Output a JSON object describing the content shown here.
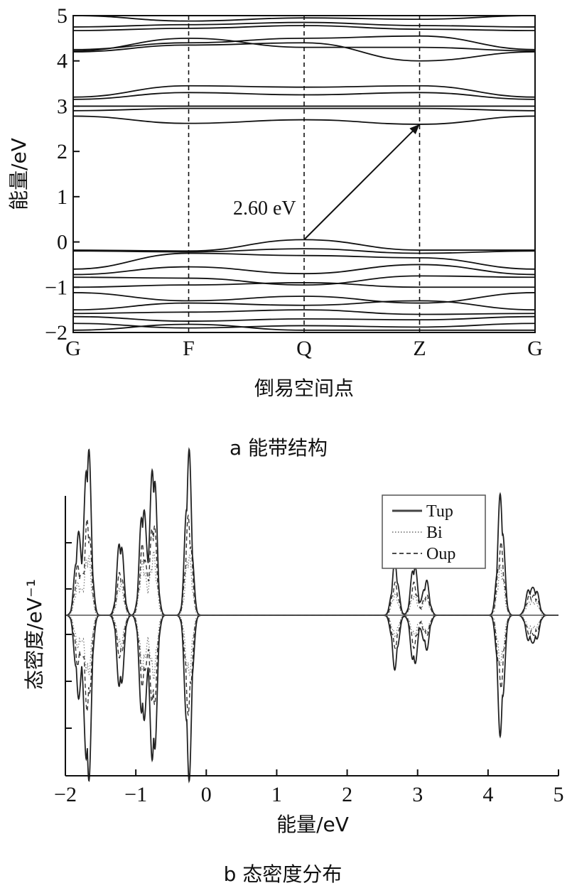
{
  "chart_data": [
    {
      "id": "band",
      "type": "line",
      "caption": "a 能带结构",
      "xlabel": "倒易空间点",
      "ylabel": "能量/eV",
      "ylim": [
        -2,
        5
      ],
      "yticks": [
        "−2",
        "−1",
        "0",
        "1",
        "2",
        "3",
        "4",
        "5"
      ],
      "kpoints": [
        "G",
        "F",
        "Q",
        "Z",
        "G"
      ],
      "annotation": {
        "text": "2.60 eV",
        "from": {
          "k": "Q",
          "energy": 0.05
        },
        "to": {
          "k": "Z",
          "energy": 2.6
        }
      },
      "series": [
        {
          "values": [
            5.0,
            4.88,
            4.95,
            4.92,
            5.05
          ]
        },
        {
          "values": [
            4.75,
            4.8,
            4.85,
            4.78,
            4.75
          ]
        },
        {
          "values": [
            4.67,
            4.72,
            4.78,
            4.7,
            4.67
          ]
        },
        {
          "values": [
            4.25,
            4.4,
            4.5,
            4.55,
            4.25
          ]
        },
        {
          "values": [
            4.22,
            4.5,
            4.3,
            4.3,
            4.22
          ]
        },
        {
          "values": [
            4.2,
            4.35,
            4.4,
            4.0,
            4.2
          ]
        },
        {
          "values": [
            3.2,
            3.45,
            3.42,
            3.45,
            3.2
          ]
        },
        {
          "values": [
            3.15,
            3.3,
            3.25,
            3.3,
            3.15
          ]
        },
        {
          "values": [
            3.0,
            3.0,
            3.0,
            3.0,
            3.0
          ]
        },
        {
          "values": [
            2.9,
            2.95,
            2.95,
            2.95,
            2.9
          ]
        },
        {
          "values": [
            2.78,
            2.62,
            2.7,
            2.6,
            2.78
          ]
        },
        {
          "values": [
            -0.18,
            -0.2,
            0.05,
            -0.18,
            -0.18
          ]
        },
        {
          "values": [
            -0.2,
            -0.22,
            -0.15,
            -0.25,
            -0.2
          ]
        },
        {
          "values": [
            -0.6,
            -0.25,
            -0.3,
            -0.35,
            -0.6
          ]
        },
        {
          "values": [
            -0.72,
            -0.55,
            -0.7,
            -0.5,
            -0.72
          ]
        },
        {
          "values": [
            -0.78,
            -0.8,
            -0.95,
            -0.75,
            -0.78
          ]
        },
        {
          "values": [
            -1.0,
            -0.95,
            -0.9,
            -1.0,
            -1.0
          ]
        },
        {
          "values": [
            -1.12,
            -1.3,
            -1.2,
            -1.35,
            -1.12
          ]
        },
        {
          "values": [
            -1.5,
            -1.35,
            -1.4,
            -1.3,
            -1.5
          ]
        },
        {
          "values": [
            -1.58,
            -1.55,
            -1.5,
            -1.6,
            -1.58
          ]
        },
        {
          "values": [
            -1.65,
            -1.75,
            -1.7,
            -1.72,
            -1.65
          ]
        },
        {
          "values": [
            -1.8,
            -1.9,
            -1.85,
            -1.88,
            -1.8
          ]
        },
        {
          "values": [
            -1.95,
            -1.82,
            -1.95,
            -1.95,
            -1.95
          ]
        }
      ]
    },
    {
      "id": "dos",
      "type": "line",
      "caption": "b 态密度分布",
      "xlabel": "能量/eV",
      "ylabel": "态密度/eV⁻¹",
      "xlim": [
        -2,
        5
      ],
      "xticks": [
        "−2",
        "−1",
        "0",
        "1",
        "2",
        "3",
        "4",
        "5"
      ],
      "legend": {
        "placement": "top-right",
        "entries": [
          "Tup",
          "Bi",
          "Oup"
        ]
      },
      "peaks": [
        {
          "e": -1.82,
          "Tup": 0.45,
          "Bi": 0.18,
          "Oup": 0.28
        },
        {
          "e": -1.68,
          "Tup": 1.0,
          "Bi": 0.35,
          "Oup": 0.55
        },
        {
          "e": -1.22,
          "Tup": 0.45,
          "Bi": 0.18,
          "Oup": 0.25
        },
        {
          "e": -0.9,
          "Tup": 0.65,
          "Bi": 0.3,
          "Oup": 0.4
        },
        {
          "e": -0.75,
          "Tup": 0.9,
          "Bi": 0.35,
          "Oup": 0.55
        },
        {
          "e": -0.25,
          "Tup": 0.92,
          "Bi": 0.35,
          "Oup": 0.55
        },
        {
          "e": 2.68,
          "Tup": 0.3,
          "Bi": 0.12,
          "Oup": 0.18
        },
        {
          "e": 2.95,
          "Tup": 0.3,
          "Bi": 0.12,
          "Oup": 0.18
        },
        {
          "e": 3.12,
          "Tup": 0.2,
          "Bi": 0.1,
          "Oup": 0.12
        },
        {
          "e": 4.18,
          "Tup": 0.68,
          "Bi": 0.28,
          "Oup": 0.4
        },
        {
          "e": 4.58,
          "Tup": 0.14,
          "Bi": 0.07,
          "Oup": 0.1
        },
        {
          "e": 4.68,
          "Tup": 0.14,
          "Bi": 0.07,
          "Oup": 0.1
        }
      ]
    }
  ]
}
